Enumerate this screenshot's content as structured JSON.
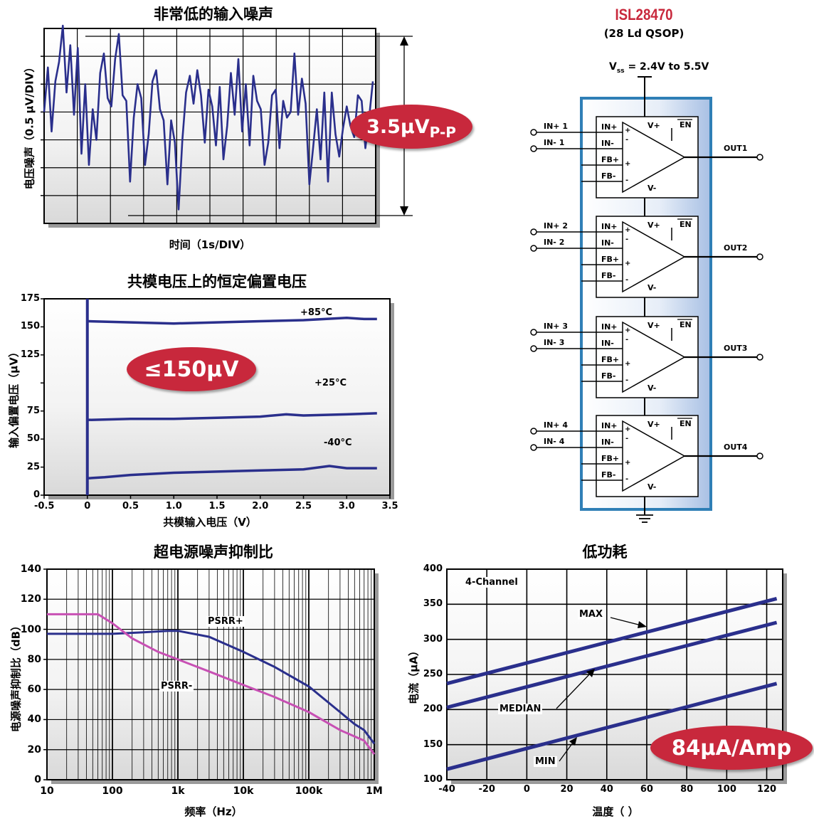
{
  "chart_data": [
    {
      "type": "line",
      "title": "非常低的输入噪声",
      "xlabel": "时间（1s/DIV）",
      "ylabel": "电压噪声（0.5 μV/DIV）",
      "badge": "3.5μV",
      "badge_sub": "P-P",
      "series": [
        {
          "values": [
            0.5,
            2.1,
            -0.2,
            1.6,
            2.3,
            3.6,
            1.2,
            2.9,
            0.4,
            2.8,
            -1.0,
            1.5,
            -1.4,
            0.6,
            -0.5,
            1.9,
            2.6,
            1.0,
            0.7,
            2.4,
            3.3,
            1.1,
            0.9,
            -2.0,
            0.3,
            1.5,
            1.0,
            -1.4,
            -0.3,
            1.6,
            2.0,
            0.6,
            0.2,
            -2.1,
            0.2,
            -0.6,
            -3.0,
            -0.5,
            1.2,
            1.8,
            0.8,
            2.0,
            1.1,
            -0.6,
            1.3,
            0.7,
            -0.7,
            1.4,
            -1.2,
            0.0,
            1.9,
            0.4,
            2.4,
            -0.2,
            1.5,
            -0.7,
            1.8,
            0.9,
            0.6,
            -1.4,
            -0.6,
            1.1,
            1.3,
            -0.8,
            0.9,
            0.3,
            0.5,
            2.6,
            0.4,
            1.7,
            0.8,
            -2.1,
            -0.8,
            0.6,
            -1.2,
            1.2,
            -2.0,
            1.2,
            -0.3,
            -1.1,
            -0.1,
            0.7,
            0.0,
            -0.4,
            1.1,
            0.9,
            -0.8,
            0.3,
            1.6
          ]
        }
      ]
    },
    {
      "type": "line",
      "title": "共模电压上的恒定偏置电压",
      "xlabel": "共模输入电压（V）",
      "ylabel": "输入偏置电压（μV）",
      "xticks": [
        "-0.5",
        "0",
        "0.5",
        "1.0",
        "1.5",
        "2.0",
        "2.5",
        "3.0",
        "3.5"
      ],
      "yticks": [
        "175",
        "150",
        "125",
        "100",
        "75",
        "50",
        "25",
        "0"
      ],
      "ytick_labels": [
        "175",
        "150",
        "125",
        "75",
        "50",
        "25",
        "0"
      ],
      "badge": "≤150μV",
      "series": [
        {
          "name": "+85°C",
          "x": [
            0,
            0.5,
            1.0,
            1.5,
            2.0,
            2.5,
            3.0,
            3.2,
            3.35
          ],
          "values": [
            155,
            154,
            153,
            154,
            155,
            156,
            158,
            157,
            157
          ]
        },
        {
          "name": "+25°C",
          "x": [
            0,
            0.5,
            1.0,
            1.5,
            2.0,
            2.3,
            2.5,
            3.0,
            3.35
          ],
          "values": [
            67,
            68,
            68,
            69,
            70,
            72,
            71,
            72,
            73
          ]
        },
        {
          "name": "-40°C",
          "x": [
            0,
            0.2,
            0.5,
            1.0,
            1.5,
            2.0,
            2.5,
            2.8,
            3.0,
            3.35
          ],
          "values": [
            15,
            16,
            18,
            20,
            21,
            22,
            23,
            26,
            24,
            24
          ]
        }
      ]
    },
    {
      "type": "line",
      "title": "超电源噪声抑制比",
      "xlabel": "频率（Hz）",
      "ylabel": "电源噪声抑制比（dB）",
      "xticks": [
        "10",
        "100",
        "1k",
        "10k",
        "100k",
        "1M"
      ],
      "yticks": [
        "140",
        "120",
        "100",
        "80",
        "60",
        "40",
        "20",
        "0"
      ],
      "series": [
        {
          "name": "PSRR+",
          "x": [
            10,
            30,
            100,
            300,
            700,
            1000,
            3000,
            10000,
            30000,
            100000,
            300000,
            500000,
            700000,
            1000000
          ],
          "values": [
            97,
            97,
            97,
            98,
            99,
            99,
            95,
            85,
            75,
            62,
            45,
            37,
            33,
            24
          ]
        },
        {
          "name": "PSRR-",
          "x": [
            10,
            30,
            60,
            100,
            200,
            500,
            1000,
            3000,
            10000,
            30000,
            100000,
            300000,
            700000,
            1000000
          ],
          "values": [
            110,
            110,
            110,
            104,
            94,
            85,
            80,
            72,
            63,
            55,
            45,
            33,
            26,
            17
          ]
        }
      ]
    },
    {
      "type": "line",
      "title": "低功耗",
      "xlabel": "温度（ ）",
      "ylabel": "电流（μA）",
      "xticks": [
        "-40",
        "-20",
        "0",
        "20",
        "40",
        "60",
        "80",
        "100",
        "120"
      ],
      "yticks": [
        "400",
        "350",
        "300",
        "250",
        "200",
        "150",
        "100"
      ],
      "badge": "84μA/Amp",
      "legend_text": "4-Channel",
      "series": [
        {
          "name": "MAX",
          "x": [
            -40,
            125
          ],
          "values": [
            237,
            358
          ]
        },
        {
          "name": "MEDIAN",
          "x": [
            -40,
            125
          ],
          "values": [
            203,
            324
          ]
        },
        {
          "name": "MIN",
          "x": [
            -40,
            125
          ],
          "values": [
            115,
            237
          ]
        }
      ]
    }
  ],
  "schematic": {
    "part": "ISL28470",
    "package": "(28 Ld QSOP)",
    "supply": "= 2.4V to 5.5V",
    "supply_sym": "V",
    "supply_sub": "ss",
    "channels": [
      {
        "inp": "IN+ 1",
        "inn": "IN- 1",
        "out": "OUT1"
      },
      {
        "inp": "IN+ 2",
        "inn": "IN- 2",
        "out": "OUT2"
      },
      {
        "inp": "IN+ 3",
        "inn": "IN- 3",
        "out": "OUT3"
      },
      {
        "inp": "IN+ 4",
        "inn": "IN- 4",
        "out": "OUT4"
      }
    ],
    "pins": {
      "inp": "IN+",
      "inn": "IN-",
      "fbp": "FB+",
      "fbn": "FB-",
      "vp": "V+",
      "vn": "V-",
      "en": "EN"
    }
  }
}
